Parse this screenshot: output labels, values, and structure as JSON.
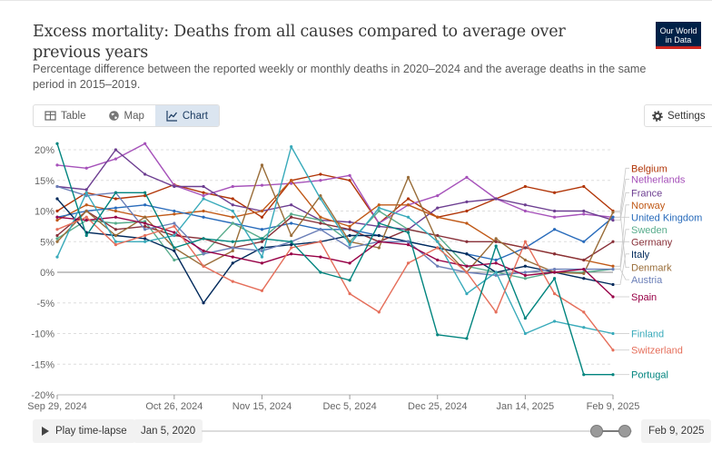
{
  "header": {
    "title": "Excess mortality: Deaths from all causes compared to average over previous years",
    "subtitle": "Percentage difference between the reported weekly or monthly deaths in 2020–2024 and the average deaths in the same period in 2015–2019.",
    "logo_line1": "Our World",
    "logo_line2": "in Data"
  },
  "tabs": [
    {
      "label": "Table",
      "icon": "table-icon"
    },
    {
      "label": "Map",
      "icon": "globe-icon"
    },
    {
      "label": "Chart",
      "icon": "line-chart-icon"
    }
  ],
  "settings": {
    "label": "Settings",
    "icon": "sliders-icon"
  },
  "timeline": {
    "play_label": "Play time-lapse",
    "start_date": "Jan 5, 2020",
    "end_date": "Feb 9, 2025"
  },
  "colors": {
    "accent": "#dbe5f0",
    "logo_bg": "#002147",
    "logo_bar": "#ce261e"
  },
  "chart_data": {
    "type": "line",
    "x_ticks": [
      "Sep 29, 2024",
      "Oct 26, 2024",
      "Nov 15, 2024",
      "Dec 5, 2024",
      "Dec 25, 2024",
      "Jan 14, 2025",
      "Feb 9, 2025"
    ],
    "x_tick_index": [
      0,
      4,
      7,
      10,
      13,
      16,
      19
    ],
    "x_count": 20,
    "y_ticks": [
      20,
      15,
      10,
      5,
      0,
      -5,
      -10,
      -15,
      -20
    ],
    "y_tick_labels": [
      "20%",
      "15%",
      "10%",
      "5%",
      "0%",
      "-5%",
      "-10%",
      "-15%",
      "-20%"
    ],
    "ylim": [
      -20,
      20
    ],
    "grid": "horizontal-dashed",
    "legend": "right, inline labels",
    "series": [
      {
        "name": "Belgium",
        "color": "#b13507",
        "label_y": 17.0,
        "values": [
          10,
          13,
          12,
          12.5,
          14.3,
          13,
          12,
          9,
          15,
          16,
          15,
          8,
          12,
          9,
          10,
          12,
          14,
          13,
          14,
          10
        ]
      },
      {
        "name": "Netherlands",
        "color": "#a652ba",
        "label_y": 15.2,
        "values": [
          17.5,
          17,
          18.5,
          21,
          14.2,
          12.5,
          14,
          14.2,
          14.5,
          15,
          15.8,
          8,
          11,
          12.5,
          15.5,
          12,
          10,
          9,
          9.5,
          9
        ]
      },
      {
        "name": "France",
        "color": "#6d3e91",
        "label_y": 13.0,
        "values": [
          14,
          13.5,
          20,
          16,
          14,
          14,
          11,
          10,
          11,
          8.5,
          8.2,
          7.5,
          7,
          10.5,
          11.5,
          12,
          11,
          10,
          10,
          8.5
        ]
      },
      {
        "name": "Norway",
        "color": "#c05917",
        "label_y": 11.0,
        "values": [
          8.5,
          11,
          10,
          9,
          9.5,
          10,
          9,
          10,
          15,
          9,
          7.5,
          11,
          11,
          9,
          8,
          5,
          4,
          3,
          2,
          1
        ]
      },
      {
        "name": "United Kingdom",
        "color": "#286bbb",
        "label_y": 9.0,
        "values": [
          9,
          10,
          10.5,
          11,
          10,
          9,
          8,
          7,
          8,
          7,
          7,
          6,
          5,
          4,
          3,
          2,
          4,
          7,
          5,
          9
        ]
      },
      {
        "name": "Sweden",
        "color": "#58ac8c",
        "label_y": 7.0,
        "values": [
          5.5,
          8.5,
          8,
          8.3,
          2,
          3,
          8,
          5.5,
          9.5,
          8.5,
          5,
          10,
          7,
          6,
          1,
          0,
          -1,
          0,
          0,
          0.5
        ]
      },
      {
        "name": "Germany",
        "color": "#883039",
        "label_y": 5.0,
        "values": [
          6,
          10,
          7,
          7.5,
          6,
          5.5,
          4,
          5,
          9,
          8,
          7,
          5,
          7,
          6,
          5,
          5,
          4,
          3,
          2,
          5
        ]
      },
      {
        "name": "Italy",
        "color": "#00295b",
        "label_y": 3.0,
        "values": [
          12,
          6.5,
          6,
          5.5,
          3.5,
          -5,
          1.5,
          4,
          4.5,
          5,
          6,
          6,
          5,
          4,
          3,
          0,
          1,
          0,
          -1,
          -2
        ]
      },
      {
        "name": "Denmark",
        "color": "#996d39",
        "label_y": 0.8,
        "values": [
          5,
          10,
          6,
          9,
          4,
          1,
          3.5,
          17.5,
          6,
          12.5,
          5,
          4,
          15.5,
          5,
          0,
          5.5,
          2,
          0,
          -0.2,
          9.8
        ]
      },
      {
        "name": "Austria",
        "color": "#6b7fb8",
        "label_y": -1.2,
        "values": [
          14,
          12.5,
          13,
          7,
          8,
          3,
          4,
          3.5,
          5,
          7,
          4,
          5,
          5,
          1,
          0,
          -0.5,
          0,
          0.5,
          0.5,
          0.5
        ]
      },
      {
        "name": "Spain",
        "color": "#970046",
        "label_y": -4.0,
        "values": [
          9,
          8.5,
          9,
          8,
          6.5,
          3.5,
          2.5,
          1.5,
          3,
          2.5,
          1.5,
          5,
          4.5,
          2,
          1,
          1.5,
          -0.5,
          0,
          0.5,
          -4
        ]
      },
      {
        "name": "Finland",
        "color": "#38aaba",
        "label_y": -10.0,
        "values": [
          2.5,
          13,
          5,
          5,
          6,
          12,
          10,
          2.5,
          20.5,
          12,
          4.5,
          10.5,
          9,
          5,
          -3.5,
          0,
          -10,
          -8,
          -9,
          -10
        ]
      },
      {
        "name": "Switzerland",
        "color": "#e56e5a",
        "label_y": -12.7,
        "values": [
          7,
          9,
          4.5,
          6,
          7.5,
          1,
          -1.5,
          -3,
          4,
          5,
          -3.5,
          -6.5,
          1.5,
          4,
          0,
          -6.5,
          5,
          -3.5,
          -6.5,
          -12.7
        ]
      },
      {
        "name": "Portugal",
        "color": "#00847e",
        "label_y": -16.7,
        "values": [
          21,
          6,
          13,
          13,
          4,
          5.5,
          5,
          5.5,
          5,
          0,
          -1.3,
          8,
          6.5,
          -10.2,
          -10.8,
          4.3,
          -7.5,
          -1,
          -16.7,
          -16.7
        ]
      }
    ]
  }
}
